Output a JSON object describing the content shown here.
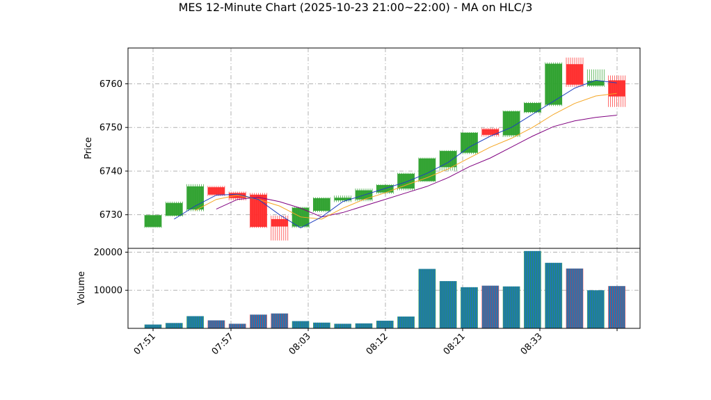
{
  "chart_data": {
    "type": "candlestick",
    "title": "MES 12-Minute Chart (2025-10-23 21:00~22:00) - MA on HLC/3",
    "price_panel": {
      "ylabel": "Price",
      "ylim": [
        6722.3,
        6768.2
      ],
      "yticks": [
        6730,
        6740,
        6750,
        6760
      ]
    },
    "volume_panel": {
      "ylabel": "Volume",
      "ylim": [
        0,
        21000
      ],
      "yticks": [
        10000,
        20000
      ]
    },
    "x_ticks": [
      "07:51",
      "07:57",
      "08:03",
      "08:12",
      "08:21",
      "08:33"
    ],
    "grid": true,
    "colors": {
      "up": "#2ca02c",
      "down": "#ff2a2a",
      "ma_fast": "#1f3fbf",
      "ma_mid": "#f5a623",
      "ma_slow": "#800080",
      "volume_face": "#1f77b4"
    },
    "candles": [
      {
        "o": 6727.2,
        "h": 6730.0,
        "l": 6727.0,
        "c": 6729.9,
        "v": 1000
      },
      {
        "o": 6729.8,
        "h": 6733.0,
        "l": 6729.6,
        "c": 6732.7,
        "v": 1400
      },
      {
        "o": 6731.2,
        "h": 6737.0,
        "l": 6730.8,
        "c": 6736.5,
        "v": 3200
      },
      {
        "o": 6736.3,
        "h": 6736.6,
        "l": 6734.3,
        "c": 6734.6,
        "v": 2100
      },
      {
        "o": 6735.0,
        "h": 6735.3,
        "l": 6733.3,
        "c": 6733.8,
        "v": 1200
      },
      {
        "o": 6734.6,
        "h": 6735.0,
        "l": 6727.0,
        "c": 6727.2,
        "v": 3600
      },
      {
        "o": 6729.0,
        "h": 6729.8,
        "l": 6724.1,
        "c": 6727.3,
        "v": 3900
      },
      {
        "o": 6727.3,
        "h": 6731.8,
        "l": 6727.0,
        "c": 6731.6,
        "v": 1900
      },
      {
        "o": 6730.9,
        "h": 6734.0,
        "l": 6730.6,
        "c": 6733.8,
        "v": 1500
      },
      {
        "o": 6733.3,
        "h": 6734.4,
        "l": 6732.9,
        "c": 6733.9,
        "v": 1200
      },
      {
        "o": 6733.5,
        "h": 6736.0,
        "l": 6733.1,
        "c": 6735.6,
        "v": 1300
      },
      {
        "o": 6735.1,
        "h": 6737.0,
        "l": 6734.8,
        "c": 6736.8,
        "v": 2000
      },
      {
        "o": 6736.0,
        "h": 6739.6,
        "l": 6735.6,
        "c": 6739.4,
        "v": 3100
      },
      {
        "o": 6737.7,
        "h": 6743.1,
        "l": 6737.5,
        "c": 6742.9,
        "v": 15600
      },
      {
        "o": 6740.9,
        "h": 6744.8,
        "l": 6740.1,
        "c": 6744.6,
        "v": 12400
      },
      {
        "o": 6744.2,
        "h": 6748.9,
        "l": 6743.9,
        "c": 6748.8,
        "v": 10800
      },
      {
        "o": 6749.6,
        "h": 6749.9,
        "l": 6747.9,
        "c": 6748.3,
        "v": 11200
      },
      {
        "o": 6748.2,
        "h": 6753.9,
        "l": 6747.8,
        "c": 6753.7,
        "v": 11000
      },
      {
        "o": 6753.5,
        "h": 6755.8,
        "l": 6753.3,
        "c": 6755.6,
        "v": 20300
      },
      {
        "o": 6755.2,
        "h": 6764.9,
        "l": 6754.9,
        "c": 6764.6,
        "v": 17200
      },
      {
        "o": 6764.5,
        "h": 6766.0,
        "l": 6759.3,
        "c": 6759.8,
        "v": 15700
      },
      {
        "o": 6759.6,
        "h": 6763.3,
        "l": 6759.3,
        "c": 6760.7,
        "v": 10000
      },
      {
        "o": 6760.8,
        "h": 6761.9,
        "l": 6754.7,
        "c": 6757.1,
        "v": 11100
      }
    ],
    "ma_fast": [
      null,
      6729.0,
      6732.0,
      6734.5,
      6734.7,
      6733.5,
      6730.0,
      6727.0,
      6729.5,
      6733.0,
      6734.5,
      6736.0,
      6737.5,
      6739.5,
      6742.0,
      6745.5,
      6748.0,
      6750.0,
      6753.0,
      6756.0,
      6759.0,
      6760.8,
      6760.2
    ],
    "ma_mid": [
      null,
      null,
      6731.0,
      6733.5,
      6734.5,
      6733.5,
      6732.0,
      6729.5,
      6729.0,
      6731.5,
      6733.5,
      6735.0,
      6736.8,
      6738.5,
      6740.5,
      6743.0,
      6745.5,
      6747.5,
      6750.0,
      6753.0,
      6755.5,
      6757.2,
      6757.8
    ],
    "ma_slow": [
      null,
      null,
      null,
      6731.3,
      6733.5,
      6734.0,
      6733.0,
      6731.5,
      6729.5,
      6730.5,
      6732.0,
      6733.5,
      6735.0,
      6736.5,
      6738.5,
      6741.0,
      6743.0,
      6745.5,
      6748.0,
      6750.2,
      6751.5,
      6752.3,
      6752.8
    ]
  }
}
